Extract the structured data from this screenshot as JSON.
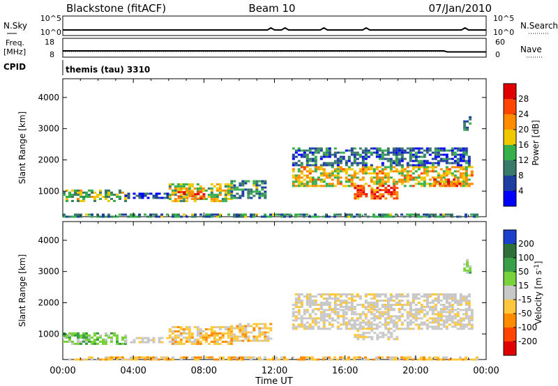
{
  "header": {
    "station": "Blackstone (fitACF)",
    "beam": "Beam 10",
    "date": "07/Jan/2010"
  },
  "strips": {
    "nsky_label": "N.Sky",
    "nsky_ticks": [
      "10^5",
      "10^0"
    ],
    "nsearch_label": "N.Search",
    "nsearch_ticks": [
      "10^5",
      "10^0"
    ],
    "freq_label_1": "Freq.",
    "freq_label_2": "[MHz]",
    "freq_ticks": [
      "18",
      "8"
    ],
    "nave_label": "Nave",
    "nave_ticks": [
      "60",
      "0"
    ],
    "cpid_label": "CPID",
    "cpid_value": "themis (tau) 3310"
  },
  "chart_data": [
    {
      "type": "heatmap",
      "panel": "power",
      "ylabel": "Slant Range [km]",
      "xlabel": "Time UT",
      "ylim": [
        180,
        4600
      ],
      "xlim": [
        0,
        24
      ],
      "yticks": [
        "1000",
        "2000",
        "3000",
        "4000"
      ],
      "xticks": [
        "00:00",
        "04:00",
        "08:00",
        "12:00",
        "16:00",
        "20:00",
        "00:00"
      ],
      "colorbar": {
        "label": "Power [dB]",
        "ticks": [
          "4",
          "8",
          "12",
          "16",
          "20",
          "24",
          "28"
        ],
        "colors": [
          "#0000ff",
          "#1f3fa0",
          "#3a7a6a",
          "#36b04a",
          "#f0c800",
          "#ff8c00",
          "#ff4500",
          "#e00000"
        ]
      },
      "regions": [
        {
          "t0": 0.0,
          "t1": 3.5,
          "r0": 700,
          "r1": 1050,
          "level": 0.45
        },
        {
          "t0": 3.5,
          "t1": 6.0,
          "r0": 750,
          "r1": 950,
          "level": 0.15
        },
        {
          "t0": 6.0,
          "t1": 9.5,
          "r0": 700,
          "r1": 1250,
          "level": 0.5
        },
        {
          "t0": 6.5,
          "t1": 8.0,
          "r0": 750,
          "r1": 1000,
          "level": 0.9
        },
        {
          "t0": 9.5,
          "t1": 11.5,
          "r0": 750,
          "r1": 1350,
          "level": 0.3
        },
        {
          "t0": 13.0,
          "t1": 23.2,
          "r0": 1150,
          "r1": 1800,
          "level": 0.6
        },
        {
          "t0": 16.5,
          "t1": 19.0,
          "r0": 750,
          "r1": 1200,
          "level": 0.85
        },
        {
          "t0": 21.0,
          "t1": 22.5,
          "r0": 1150,
          "r1": 1400,
          "level": 0.8
        },
        {
          "t0": 13.0,
          "t1": 23.0,
          "r0": 1800,
          "r1": 2400,
          "level": 0.2
        },
        {
          "t0": 22.7,
          "t1": 23.1,
          "r0": 2950,
          "r1": 3400,
          "level": 0.3
        },
        {
          "t0": 0.0,
          "t1": 23.5,
          "r0": 190,
          "r1": 280,
          "level": 0.3
        }
      ]
    },
    {
      "type": "heatmap",
      "panel": "velocity",
      "ylabel": "Slant Range [km]",
      "xlabel": "Time UT",
      "ylim": [
        180,
        4600
      ],
      "xlim": [
        0,
        24
      ],
      "yticks": [
        "1000",
        "2000",
        "3000",
        "4000"
      ],
      "xticks": [
        "00:00",
        "04:00",
        "08:00",
        "12:00",
        "16:00",
        "20:00",
        "00:00"
      ],
      "colorbar": {
        "label": "Velocity [m s-1]",
        "ticks": [
          "200",
          "100",
          "50",
          "15",
          "-15",
          "-50",
          "-100",
          "-200"
        ],
        "colors": [
          "#1c3fcc",
          "#2f6f3a",
          "#3aa048",
          "#78d23c",
          "#c8c8c8",
          "#ffc83c",
          "#ff8c00",
          "#ff4500",
          "#e00000"
        ]
      },
      "regions": [
        {
          "t0": 0.0,
          "t1": 3.5,
          "r0": 700,
          "r1": 1050,
          "cls": "green"
        },
        {
          "t0": 3.5,
          "t1": 6.0,
          "r0": 750,
          "r1": 900,
          "cls": "grey"
        },
        {
          "t0": 6.0,
          "t1": 9.5,
          "r0": 700,
          "r1": 1250,
          "cls": "orange"
        },
        {
          "t0": 9.5,
          "t1": 11.8,
          "r0": 800,
          "r1": 1350,
          "cls": "orange"
        },
        {
          "t0": 13.0,
          "t1": 23.2,
          "r0": 1150,
          "r1": 1800,
          "cls": "grey"
        },
        {
          "t0": 16.5,
          "t1": 19.0,
          "r0": 800,
          "r1": 1200,
          "cls": "grey"
        },
        {
          "t0": 13.0,
          "t1": 23.0,
          "r0": 1800,
          "r1": 2300,
          "cls": "grey"
        },
        {
          "t0": 22.7,
          "t1": 23.1,
          "r0": 2950,
          "r1": 3400,
          "cls": "green"
        },
        {
          "t0": 0.0,
          "t1": 23.5,
          "r0": 190,
          "r1": 280,
          "cls": "orange"
        }
      ]
    }
  ]
}
